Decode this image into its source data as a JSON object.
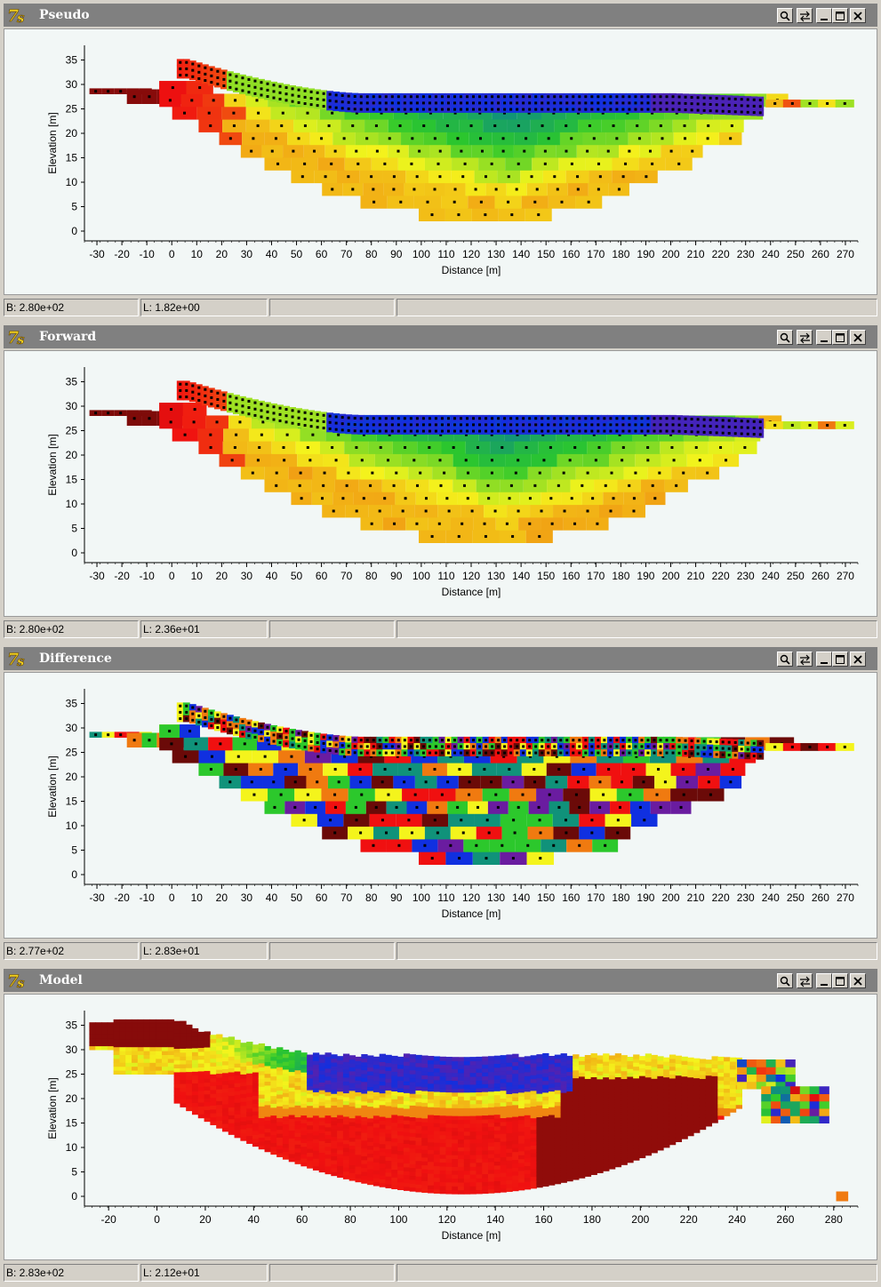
{
  "windows": [
    {
      "title": "Pseudo",
      "status_b": "B: 2.80e+02",
      "status_l": "L: 1.82e+00",
      "chart_data": {
        "type": "heatmap",
        "xlabel": "Distance [m]",
        "ylabel": "Elevation [m]",
        "xlim": [
          -35,
          275
        ],
        "ylim": [
          -2,
          38
        ],
        "xticks": [
          -30,
          -20,
          -10,
          0,
          10,
          20,
          30,
          40,
          50,
          60,
          70,
          80,
          90,
          100,
          110,
          120,
          130,
          140,
          150,
          160,
          170,
          180,
          190,
          200,
          210,
          220,
          230,
          240,
          250,
          260,
          270
        ],
        "yticks": [
          0,
          5,
          10,
          15,
          20,
          25,
          30,
          35
        ],
        "grid": false
      }
    },
    {
      "title": "Forward",
      "status_b": "B: 2.80e+02",
      "status_l": "L: 2.36e+01",
      "chart_data": {
        "type": "heatmap",
        "xlabel": "Distance [m]",
        "ylabel": "Elevation [m]",
        "xlim": [
          -35,
          275
        ],
        "ylim": [
          -2,
          38
        ],
        "xticks": [
          -30,
          -20,
          -10,
          0,
          10,
          20,
          30,
          40,
          50,
          60,
          70,
          80,
          90,
          100,
          110,
          120,
          130,
          140,
          150,
          160,
          170,
          180,
          190,
          200,
          210,
          220,
          230,
          240,
          250,
          260,
          270
        ],
        "yticks": [
          0,
          5,
          10,
          15,
          20,
          25,
          30,
          35
        ],
        "grid": false
      }
    },
    {
      "title": "Difference",
      "status_b": "B: 2.77e+02",
      "status_l": "L: 2.83e+01",
      "chart_data": {
        "type": "heatmap",
        "xlabel": "Distance [m]",
        "ylabel": "Elevation [m]",
        "xlim": [
          -35,
          275
        ],
        "ylim": [
          -2,
          38
        ],
        "xticks": [
          -30,
          -20,
          -10,
          0,
          10,
          20,
          30,
          40,
          50,
          60,
          70,
          80,
          90,
          100,
          110,
          120,
          130,
          140,
          150,
          160,
          170,
          180,
          190,
          200,
          210,
          220,
          230,
          240,
          250,
          260,
          270
        ],
        "yticks": [
          0,
          5,
          10,
          15,
          20,
          25,
          30,
          35
        ],
        "grid": false
      }
    },
    {
      "title": "Model",
      "status_b": "B: 2.83e+02",
      "status_l": "L: 2.12e+01",
      "chart_data": {
        "type": "heatmap",
        "xlabel": "Distance [m]",
        "ylabel": "Elevation [m]",
        "xlim": [
          -30,
          290
        ],
        "ylim": [
          -2,
          38
        ],
        "xticks": [
          -20,
          0,
          20,
          40,
          60,
          80,
          100,
          120,
          140,
          160,
          180,
          200,
          220,
          240,
          260,
          280
        ],
        "yticks": [
          0,
          5,
          10,
          15,
          20,
          25,
          30,
          35
        ],
        "grid": false
      }
    }
  ],
  "colors": {
    "titlebar": "#808080",
    "plot_bg": "#f2f7f6",
    "dark_red": "#6b0a08",
    "red": "#f01010",
    "orange": "#f07a10",
    "yellow": "#f4f41c",
    "green": "#2cc82c",
    "teal": "#10927a",
    "blue": "#1030e0",
    "purple": "#6a1ca0"
  },
  "icons": [
    "app-icon",
    "zoom-icon",
    "swap-icon",
    "minimize-icon",
    "maximize-icon",
    "close-icon"
  ]
}
